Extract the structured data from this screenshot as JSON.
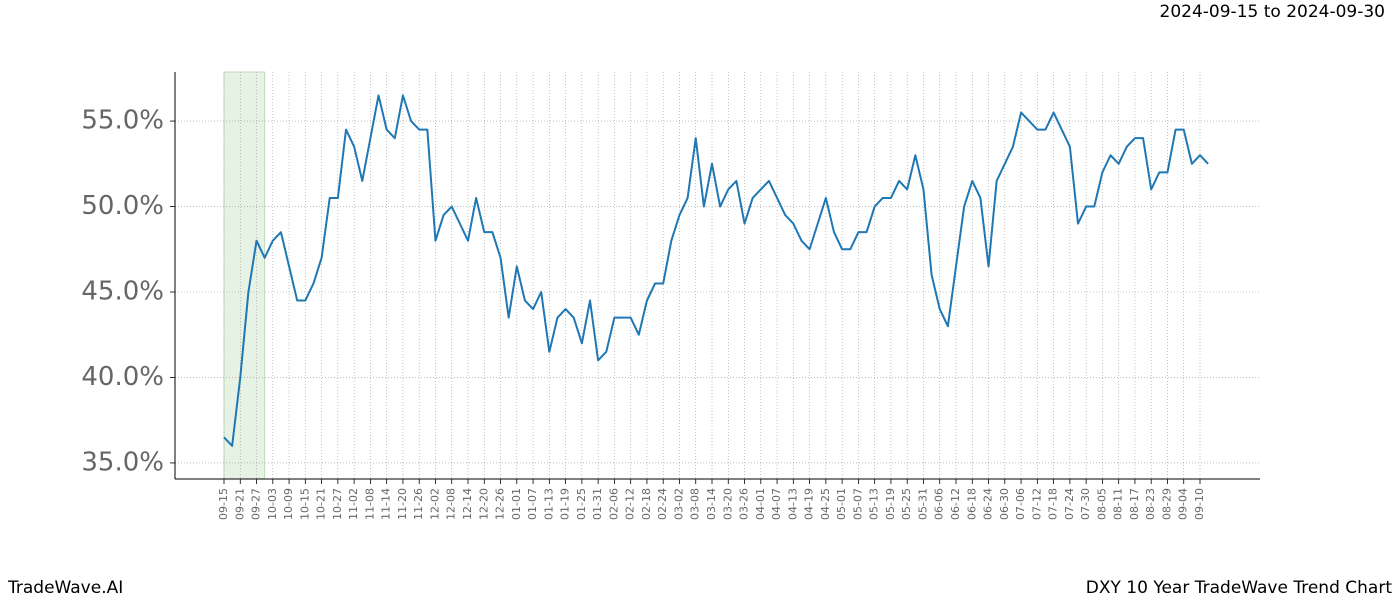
{
  "chart_data": {
    "type": "line",
    "title": "2024-09-15 to 2024-09-30",
    "footer_left": "TradeWave.AI",
    "footer_right": "DXY 10 Year TradeWave Trend Chart",
    "x": [
      "09-15",
      "09-18",
      "09-21",
      "09-24",
      "09-27",
      "09-30",
      "10-03",
      "10-06",
      "10-09",
      "10-12",
      "10-15",
      "10-18",
      "10-21",
      "10-24",
      "10-27",
      "10-30",
      "11-02",
      "11-05",
      "11-08",
      "11-11",
      "11-14",
      "11-17",
      "11-20",
      "11-23",
      "11-26",
      "11-29",
      "12-02",
      "12-05",
      "12-08",
      "12-11",
      "12-14",
      "12-17",
      "12-20",
      "12-23",
      "12-26",
      "12-29",
      "01-01",
      "01-04",
      "01-07",
      "01-10",
      "01-13",
      "01-16",
      "01-19",
      "01-22",
      "01-25",
      "01-28",
      "01-31",
      "02-03",
      "02-06",
      "02-09",
      "02-12",
      "02-15",
      "02-18",
      "02-21",
      "02-24",
      "02-27",
      "03-02",
      "03-05",
      "03-08",
      "03-11",
      "03-14",
      "03-17",
      "03-20",
      "03-23",
      "03-26",
      "03-29",
      "04-01",
      "04-04",
      "04-07",
      "04-10",
      "04-13",
      "04-16",
      "04-19",
      "04-22",
      "04-25",
      "04-28",
      "05-01",
      "05-04",
      "05-07",
      "05-10",
      "05-13",
      "05-16",
      "05-19",
      "05-22",
      "05-25",
      "05-28",
      "05-31",
      "06-03",
      "06-06",
      "06-09",
      "06-12",
      "06-15",
      "06-18",
      "06-21",
      "06-24",
      "06-27",
      "06-30",
      "07-03",
      "07-06",
      "07-09",
      "07-12",
      "07-15",
      "07-18",
      "07-21",
      "07-24",
      "07-27",
      "07-30",
      "08-02",
      "08-05",
      "08-08",
      "08-11",
      "08-14",
      "08-17",
      "08-20",
      "08-23",
      "08-26",
      "08-29",
      "09-01",
      "09-04",
      "09-07",
      "09-10",
      "09-13"
    ],
    "series": [
      {
        "name": "DXY",
        "color": "#1f77b4",
        "values": [
          36.5,
          36.0,
          40.0,
          45.0,
          48.0,
          47.0,
          48.0,
          48.5,
          46.5,
          44.5,
          44.5,
          45.5,
          47.0,
          50.5,
          50.5,
          54.5,
          53.5,
          51.5,
          54.0,
          56.5,
          54.5,
          54.0,
          56.5,
          55.0,
          54.5,
          54.5,
          48.0,
          49.5,
          50.0,
          49.0,
          48.0,
          50.5,
          48.5,
          48.5,
          47.0,
          43.5,
          46.5,
          44.5,
          44.0,
          45.0,
          41.5,
          43.5,
          44.0,
          43.5,
          42.0,
          44.5,
          41.0,
          41.5,
          43.5,
          43.5,
          43.5,
          42.5,
          44.5,
          45.5,
          45.5,
          48.0,
          49.5,
          50.5,
          54.0,
          50.0,
          52.5,
          50.0,
          51.0,
          51.5,
          49.0,
          50.5,
          51.0,
          51.5,
          50.5,
          49.5,
          49.0,
          48.0,
          47.5,
          49.0,
          50.5,
          48.5,
          47.5,
          47.5,
          48.5,
          48.5,
          50.0,
          50.5,
          50.5,
          51.5,
          51.0,
          53.0,
          51.0,
          46.0,
          44.0,
          43.0,
          46.5,
          50.0,
          51.5,
          50.5,
          46.5,
          51.5,
          52.5,
          53.5,
          55.5,
          55.0,
          54.5,
          54.5,
          55.5,
          54.5,
          53.5,
          49.0,
          50.0,
          50.0,
          52.0,
          53.0,
          52.5,
          53.5,
          54.0,
          54.0,
          51.0,
          52.0,
          52.0,
          54.5,
          54.5,
          52.5,
          53.0,
          52.5
        ]
      }
    ],
    "xticks": [
      "09-15",
      "09-21",
      "09-27",
      "10-03",
      "10-09",
      "10-15",
      "10-21",
      "10-27",
      "11-02",
      "11-08",
      "11-14",
      "11-20",
      "11-26",
      "12-02",
      "12-08",
      "12-14",
      "12-20",
      "12-26",
      "01-01",
      "01-07",
      "01-13",
      "01-19",
      "01-25",
      "01-31",
      "02-06",
      "02-12",
      "02-18",
      "02-24",
      "03-02",
      "03-08",
      "03-14",
      "03-20",
      "03-26",
      "04-01",
      "04-07",
      "04-13",
      "04-19",
      "04-25",
      "05-01",
      "05-07",
      "05-13",
      "05-19",
      "05-25",
      "05-31",
      "06-06",
      "06-12",
      "06-18",
      "06-24",
      "06-30",
      "07-06",
      "07-12",
      "07-18",
      "07-24",
      "07-30",
      "08-05",
      "08-11",
      "08-17",
      "08-23",
      "08-29",
      "09-04",
      "09-10"
    ],
    "highlight": [
      "09-15",
      "09-30"
    ],
    "highlight_color": "#e6f2e3",
    "ylim": [
      34.06,
      57.87
    ],
    "yticks": [
      {
        "value": 35,
        "label": "35.0%"
      },
      {
        "value": 40,
        "label": "40.0%"
      },
      {
        "value": 45,
        "label": "45.0%"
      },
      {
        "value": 50,
        "label": "50.0%"
      },
      {
        "value": 55,
        "label": "55.0%"
      }
    ],
    "grid": true
  }
}
